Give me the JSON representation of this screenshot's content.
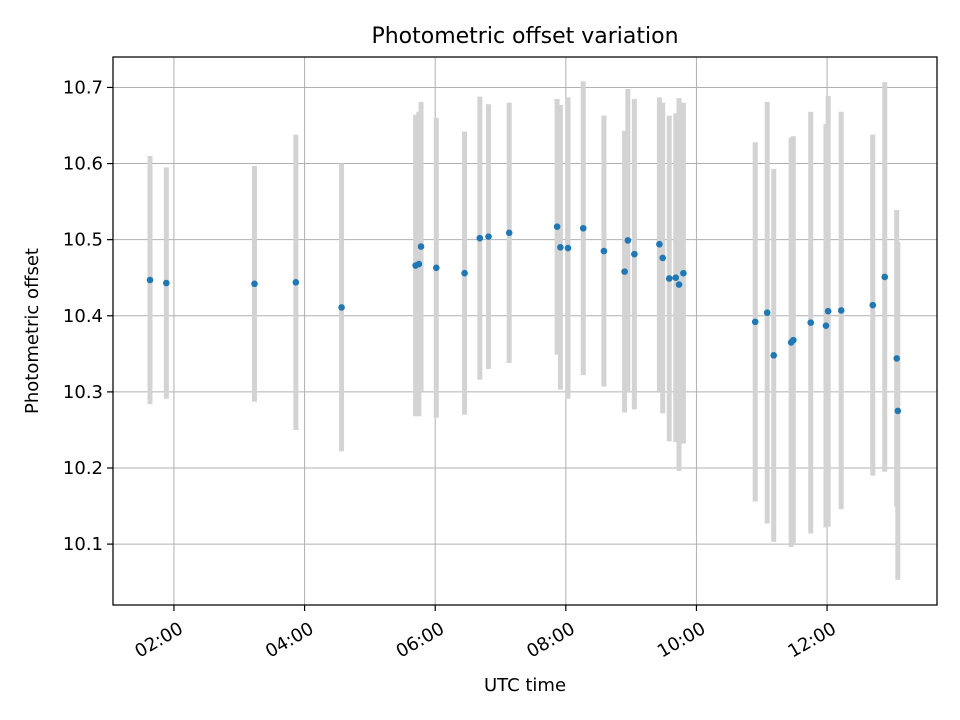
{
  "chart_data": {
    "type": "scatter",
    "title": "Photometric offset variation",
    "xlabel": "UTC time",
    "ylabel": "Photometric offset",
    "xlim": [
      "01:04",
      "13:41"
    ],
    "ylim": [
      10.02,
      10.74
    ],
    "x_ticks": [
      "02:00",
      "04:00",
      "06:00",
      "08:00",
      "10:00",
      "12:00"
    ],
    "y_ticks": [
      10.1,
      10.2,
      10.3,
      10.4,
      10.5,
      10.6,
      10.7
    ],
    "grid": true,
    "legend": "none",
    "colors": {
      "points": "#1f77b4",
      "error_bars": "#d3d3d3",
      "grid": "#b0b0b0"
    },
    "points": [
      {
        "x": "01:38",
        "y": 10.447,
        "err": 0.163
      },
      {
        "x": "01:53",
        "y": 10.443,
        "err": 0.152
      },
      {
        "x": "03:14",
        "y": 10.442,
        "err": 0.155
      },
      {
        "x": "03:52",
        "y": 10.444,
        "err": 0.194
      },
      {
        "x": "04:34",
        "y": 10.411,
        "err": 0.189
      },
      {
        "x": "05:42",
        "y": 10.466,
        "err": 0.198
      },
      {
        "x": "05:45",
        "y": 10.468,
        "err": 0.2
      },
      {
        "x": "05:47",
        "y": 10.491,
        "err": 0.19
      },
      {
        "x": "06:01",
        "y": 10.463,
        "err": 0.197
      },
      {
        "x": "06:27",
        "y": 10.456,
        "err": 0.186
      },
      {
        "x": "06:41",
        "y": 10.502,
        "err": 0.186
      },
      {
        "x": "06:49",
        "y": 10.504,
        "err": 0.174
      },
      {
        "x": "07:08",
        "y": 10.509,
        "err": 0.171
      },
      {
        "x": "07:52",
        "y": 10.517,
        "err": 0.168
      },
      {
        "x": "07:55",
        "y": 10.49,
        "err": 0.187
      },
      {
        "x": "08:02",
        "y": 10.489,
        "err": 0.198
      },
      {
        "x": "08:16",
        "y": 10.515,
        "err": 0.193
      },
      {
        "x": "08:35",
        "y": 10.485,
        "err": 0.178
      },
      {
        "x": "08:54",
        "y": 10.458,
        "err": 0.185
      },
      {
        "x": "08:57",
        "y": 10.499,
        "err": 0.199
      },
      {
        "x": "09:03",
        "y": 10.481,
        "err": 0.204
      },
      {
        "x": "09:26",
        "y": 10.494,
        "err": 0.193
      },
      {
        "x": "09:29",
        "y": 10.476,
        "err": 0.204
      },
      {
        "x": "09:35",
        "y": 10.449,
        "err": 0.214
      },
      {
        "x": "09:41",
        "y": 10.45,
        "err": 0.216
      },
      {
        "x": "09:44",
        "y": 10.441,
        "err": 0.245
      },
      {
        "x": "09:48",
        "y": 10.456,
        "err": 0.224
      },
      {
        "x": "10:54",
        "y": 10.392,
        "err": 0.236
      },
      {
        "x": "11:05",
        "y": 10.404,
        "err": 0.277
      },
      {
        "x": "11:11",
        "y": 10.348,
        "err": 0.245
      },
      {
        "x": "11:27",
        "y": 10.365,
        "err": 0.269
      },
      {
        "x": "11:29",
        "y": 10.368,
        "err": 0.268
      },
      {
        "x": "11:45",
        "y": 10.391,
        "err": 0.277
      },
      {
        "x": "11:59",
        "y": 10.387,
        "err": 0.265
      },
      {
        "x": "12:01",
        "y": 10.406,
        "err": 0.283
      },
      {
        "x": "12:13",
        "y": 10.407,
        "err": 0.261
      },
      {
        "x": "12:42",
        "y": 10.414,
        "err": 0.224
      },
      {
        "x": "12:53",
        "y": 10.451,
        "err": 0.256
      },
      {
        "x": "13:04",
        "y": 10.344,
        "err": 0.195
      },
      {
        "x": "13:05",
        "y": 10.275,
        "err": 0.222
      }
    ]
  }
}
